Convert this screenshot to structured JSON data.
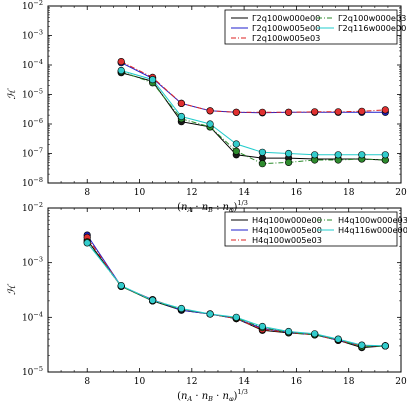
{
  "chart_data": [
    {
      "type": "line",
      "xlabel": "(n_A · n_B · n_φ)^{1/3}",
      "xlabel_parts": {
        "open": "(",
        "a": "n",
        "a_sub": "A",
        "dot": " · ",
        "b": "n",
        "b_sub": "B",
        "c": "n",
        "c_sub": "φ",
        "close": ")",
        "exp": "1/3"
      },
      "ylabel": "ℋ",
      "yscale": "log",
      "xlim": [
        6.5,
        20
      ],
      "ylim_exp": [
        -8,
        -2
      ],
      "ylim": [
        1e-08,
        0.01
      ],
      "xticks": [
        "8",
        "10",
        "12",
        "14",
        "16",
        "18",
        "20"
      ],
      "xtick_values": [
        8,
        10,
        12,
        14,
        16,
        18,
        20
      ],
      "yticks": [
        {
          "base": "10",
          "exp": "−8",
          "value": -8
        },
        {
          "base": "10",
          "exp": "−7",
          "value": -7
        },
        {
          "base": "10",
          "exp": "−6",
          "value": -6
        },
        {
          "base": "10",
          "exp": "−5",
          "value": -5
        },
        {
          "base": "10",
          "exp": "−4",
          "value": -4
        },
        {
          "base": "10",
          "exp": "−3",
          "value": -3
        },
        {
          "base": "10",
          "exp": "−2",
          "value": -2
        }
      ],
      "legend_location": "top-right",
      "series": [
        {
          "name": "Γ2q100w000e00",
          "color": "#000000",
          "dash": "solid",
          "marker": "#1b1b1b",
          "x": [
            9.3,
            10.5,
            11.6,
            12.7,
            13.7,
            14.7,
            15.7,
            16.7,
            17.6,
            18.5,
            19.4
          ],
          "y": [
            5.5e-05,
            2.8e-05,
            1.2e-06,
            8e-07,
            9e-08,
            7e-08,
            7e-08,
            6.5e-08,
            6.5e-08,
            6.5e-08,
            6e-08
          ]
        },
        {
          "name": "Γ2q100w005e00",
          "color": "#1f1fcc",
          "dash": "solid",
          "marker": "#2222bb",
          "x": [
            9.3,
            10.5,
            11.6,
            12.7,
            13.7,
            14.7,
            15.7,
            16.7,
            17.6,
            18.5,
            19.4
          ],
          "y": [
            0.00012,
            3.5e-05,
            5e-06,
            2.8e-06,
            2.5e-06,
            2.4e-06,
            2.5e-06,
            2.5e-06,
            2.5e-06,
            2.5e-06,
            2.5e-06
          ]
        },
        {
          "name": "Γ2q100w005e03",
          "color": "#dd2222",
          "dash": "dashdot",
          "marker": "#e03030",
          "x": [
            9.3,
            10.5,
            11.6,
            12.7,
            13.7,
            14.7,
            15.7,
            16.7,
            17.6,
            18.5,
            19.4
          ],
          "y": [
            0.00013,
            3.8e-05,
            5e-06,
            2.8e-06,
            2.5e-06,
            2.5e-06,
            2.5e-06,
            2.6e-06,
            2.6e-06,
            2.7e-06,
            3e-06
          ]
        },
        {
          "name": "Γ2q100w000e03",
          "color": "#2a8a2a",
          "dash": "dashdot",
          "marker": "#2e8b2e",
          "x": [
            9.3,
            10.5,
            11.6,
            12.7,
            13.7,
            14.7,
            15.7,
            16.7,
            17.6,
            18.5,
            19.4
          ],
          "y": [
            6e-05,
            2.5e-05,
            1.5e-06,
            8e-07,
            1.2e-07,
            4.5e-08,
            5e-08,
            6e-08,
            6e-08,
            6.5e-08,
            6e-08
          ]
        },
        {
          "name": "Γ2q116w000e00",
          "color": "#22cccc",
          "dash": "solid",
          "marker": "#33cccc",
          "x": [
            9.3,
            10.5,
            11.6,
            12.7,
            13.7,
            14.7,
            15.7,
            16.7,
            17.6,
            18.5,
            19.4
          ],
          "y": [
            6.5e-05,
            3.2e-05,
            1.8e-06,
            1e-06,
            2.1e-07,
            1.1e-07,
            1e-07,
            9e-08,
            9e-08,
            9e-08,
            9e-08
          ]
        }
      ]
    },
    {
      "type": "line",
      "xlabel": "(n_A · n_B · n_φ)^{1/3}",
      "xlabel_parts": {
        "open": "(",
        "a": "n",
        "a_sub": "A",
        "dot": " · ",
        "b": "n",
        "b_sub": "B",
        "c": "n",
        "c_sub": "φ",
        "close": ")",
        "exp": "1/3"
      },
      "ylabel": "ℋ",
      "yscale": "log",
      "xlim": [
        6.5,
        20
      ],
      "ylim_exp": [
        -5,
        -2
      ],
      "ylim": [
        1e-05,
        0.01
      ],
      "xticks": [
        "8",
        "10",
        "12",
        "14",
        "16",
        "18",
        "20"
      ],
      "xtick_values": [
        8,
        10,
        12,
        14,
        16,
        18,
        20
      ],
      "yticks": [
        {
          "base": "10",
          "exp": "−5",
          "value": -5
        },
        {
          "base": "10",
          "exp": "−4",
          "value": -4
        },
        {
          "base": "10",
          "exp": "−3",
          "value": -3
        },
        {
          "base": "10",
          "exp": "−2",
          "value": -2
        }
      ],
      "legend_location": "top-right",
      "series": [
        {
          "name": "H4q100w000e00",
          "color": "#000000",
          "dash": "solid",
          "marker": "#1b1b1b",
          "x": [
            8.0,
            9.3,
            10.5,
            11.6,
            12.7,
            13.7,
            14.7,
            15.7,
            16.7,
            17.6,
            18.5,
            19.4
          ],
          "y": [
            0.0026,
            0.00037,
            0.0002,
            0.000135,
            0.000115,
            9.5e-05,
            5.8e-05,
            5.2e-05,
            4.8e-05,
            3.8e-05,
            2.8e-05,
            3e-05
          ]
        },
        {
          "name": "H4q100w005e00",
          "color": "#1f1fcc",
          "dash": "solid",
          "marker": "#2222bb",
          "x": [
            8.0,
            9.3,
            10.5,
            11.6,
            12.7,
            13.7,
            14.7,
            15.7,
            16.7,
            17.6,
            18.5,
            19.4
          ],
          "y": [
            0.0032,
            0.00037,
            0.00021,
            0.000135,
            0.000115,
            9.5e-05,
            6.3e-05,
            5.3e-05,
            4.8e-05,
            3.8e-05,
            3e-05,
            3e-05
          ]
        },
        {
          "name": "H4q100w005e03",
          "color": "#dd2222",
          "dash": "dashdot",
          "marker": "#e03030",
          "x": [
            8.0,
            9.3,
            10.5,
            11.6,
            12.7,
            13.7,
            14.7,
            15.7,
            16.7,
            17.6,
            18.5,
            19.4
          ],
          "y": [
            0.0029,
            0.00037,
            0.00021,
            0.00014,
            0.000115,
            9.5e-05,
            6e-05,
            5.3e-05,
            4.8e-05,
            3.8e-05,
            3e-05,
            3e-05
          ]
        },
        {
          "name": "H4q100w000e03",
          "color": "#2a8a2a",
          "dash": "dashdot",
          "marker": "#2e8b2e",
          "x": [
            8.0,
            9.3,
            10.5,
            11.6,
            12.7,
            13.7,
            14.7,
            15.7,
            16.7,
            17.6,
            18.5,
            19.4
          ],
          "y": [
            0.0024,
            0.00037,
            0.0002,
            0.00014,
            0.000115,
            9.7e-05,
            6.5e-05,
            5.3e-05,
            4.8e-05,
            3.9e-05,
            2.9e-05,
            3e-05
          ]
        },
        {
          "name": "H4q116w000e00",
          "color": "#22cccc",
          "dash": "solid",
          "marker": "#33cccc",
          "x": [
            8.0,
            9.3,
            10.5,
            11.6,
            12.7,
            13.7,
            14.7,
            15.7,
            16.7,
            17.6,
            18.5,
            19.4
          ],
          "y": [
            0.0023,
            0.00038,
            0.000205,
            0.000145,
            0.000115,
            0.0001,
            6.8e-05,
            5.5e-05,
            5e-05,
            4e-05,
            3.1e-05,
            3e-05
          ]
        }
      ]
    }
  ]
}
